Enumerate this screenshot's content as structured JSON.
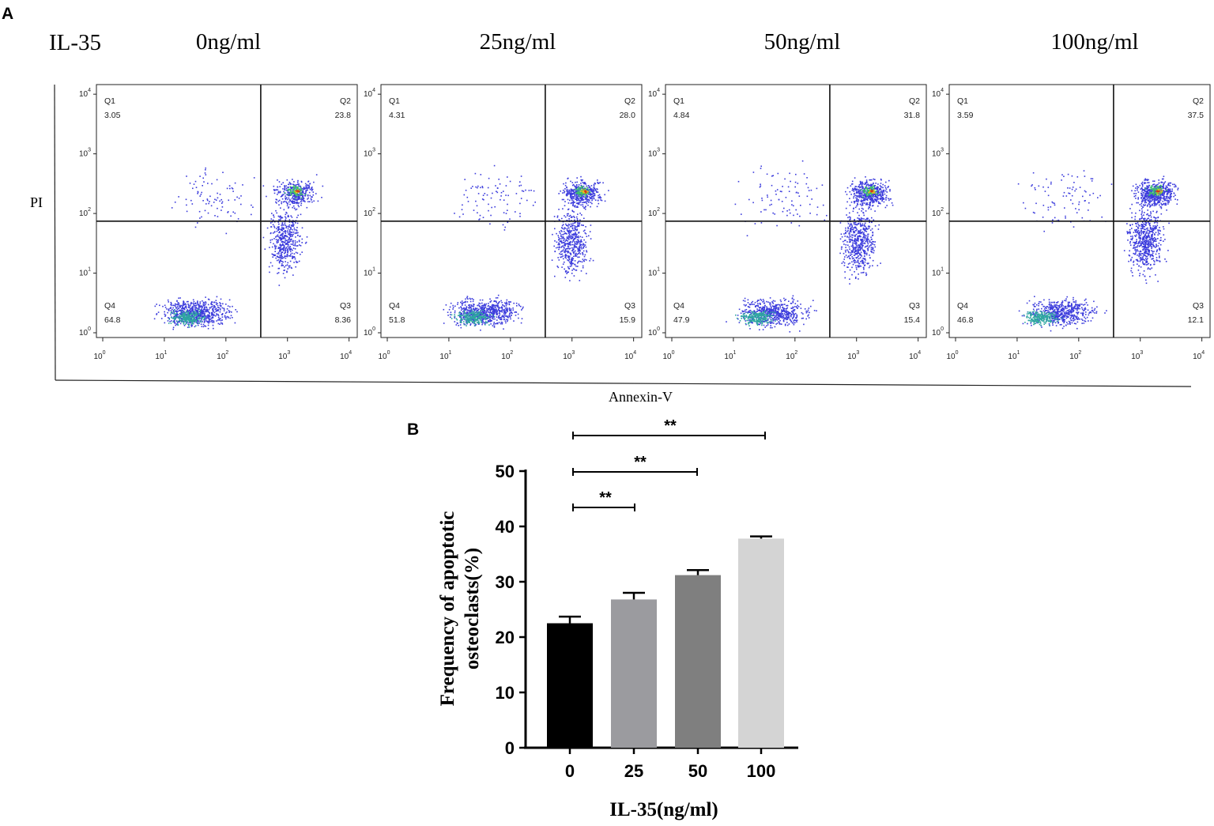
{
  "panel_a": {
    "label": "A",
    "row_label": "IL-35",
    "y_axis_label": "PI",
    "x_axis_label": "Annexin-V",
    "tick_labels": [
      "10",
      "10",
      "10",
      "10",
      "10"
    ],
    "tick_exponents": [
      "0",
      "1",
      "2",
      "3",
      "4"
    ],
    "panels": [
      {
        "title": "0ng/ml",
        "q1_name": "Q1",
        "q1": "3.05",
        "q2_name": "Q2",
        "q2": "23.8",
        "q3_name": "Q3",
        "q3": "8.36",
        "q4_name": "Q4",
        "q4": "64.8"
      },
      {
        "title": "25ng/ml",
        "q1_name": "Q1",
        "q1": "4.31",
        "q2_name": "Q2",
        "q2": "28.0",
        "q3_name": "Q3",
        "q3": "15.9",
        "q4_name": "Q4",
        "q4": "51.8"
      },
      {
        "title": "50ng/ml",
        "q1_name": "Q1",
        "q1": "4.84",
        "q2_name": "Q2",
        "q2": "31.8",
        "q3_name": "Q3",
        "q3": "15.4",
        "q4_name": "Q4",
        "q4": "47.9"
      },
      {
        "title": "100ng/ml",
        "q1_name": "Q1",
        "q1": "3.59",
        "q2_name": "Q2",
        "q2": "37.5",
        "q3_name": "Q3",
        "q3": "12.1",
        "q4_name": "Q4",
        "q4": "46.8"
      }
    ]
  },
  "panel_b": {
    "label": "B"
  },
  "chart_data": {
    "type": "bar",
    "categories": [
      "0",
      "25",
      "50",
      "100"
    ],
    "values": [
      22.5,
      26.8,
      31.2,
      37.8
    ],
    "errors": [
      1.2,
      1.2,
      0.9,
      0.4
    ],
    "colors": [
      "#000000",
      "#9b9b9f",
      "#7f7f7f",
      "#d4d4d4"
    ],
    "ylim": [
      0,
      50
    ],
    "yticks": [
      "0",
      "10",
      "20",
      "30",
      "40",
      "50"
    ],
    "ylabel_line1": "Frequency of apoptotic",
    "ylabel_line2": "osteoclasts(%)",
    "xlabel": "IL-35(ng/ml)",
    "significance": [
      {
        "from": 0,
        "to": 1,
        "label": "**"
      },
      {
        "from": 0,
        "to": 2,
        "label": "**"
      },
      {
        "from": 0,
        "to": 3,
        "label": "**"
      }
    ]
  }
}
